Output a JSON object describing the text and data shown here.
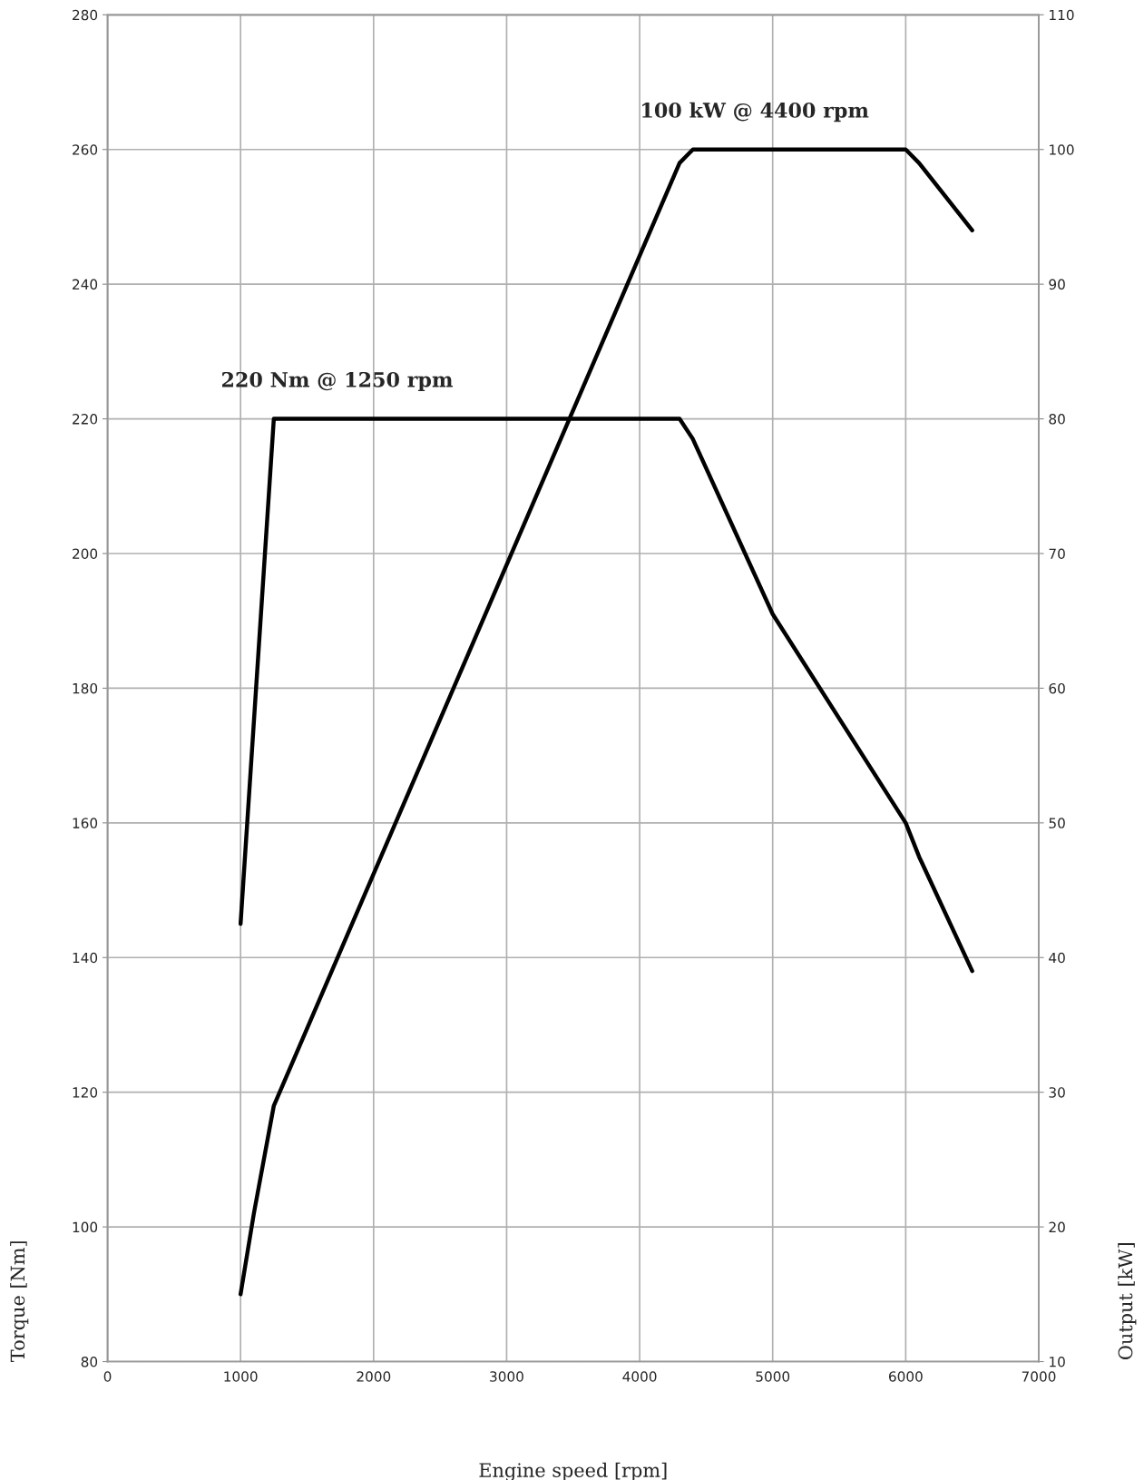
{
  "chart_data": {
    "type": "line",
    "xlabel": "Engine speed [rpm]",
    "ylabel": "Torque [Nm]",
    "y2label": "Output [kW]",
    "xlim": [
      0,
      7000
    ],
    "xticks": [
      0,
      1000,
      2000,
      3000,
      4000,
      5000,
      6000,
      7000
    ],
    "ylim": [
      80,
      280
    ],
    "yticks": [
      80,
      100,
      120,
      140,
      160,
      180,
      200,
      220,
      240,
      260,
      280
    ],
    "y2lim": [
      10,
      110
    ],
    "y2ticks": [
      10,
      20,
      30,
      40,
      50,
      60,
      70,
      80,
      90,
      100,
      110
    ],
    "grid": true,
    "legend": false,
    "marker": "none",
    "line_style": "solid",
    "series": [
      {
        "color": "#000000",
        "x": [
          1000,
          1250,
          4300,
          4400,
          5000,
          6000,
          6100,
          6500
        ],
        "values": [
          145,
          220,
          220,
          217,
          191,
          160,
          155,
          138
        ]
      },
      {
        "color": "#000000",
        "axis": "y2",
        "x": [
          1000,
          1100,
          1250,
          4300,
          4400,
          6000,
          6100,
          6500
        ],
        "values": [
          15,
          21,
          29,
          99,
          100,
          100,
          99,
          94
        ]
      }
    ],
    "annotations": [
      {
        "text": "220 Nm @ 1250 rpm",
        "x": 1250,
        "y": 220
      },
      {
        "text": "100 kW @ 4400 rpm",
        "x": 4400,
        "y": 260
      }
    ]
  }
}
